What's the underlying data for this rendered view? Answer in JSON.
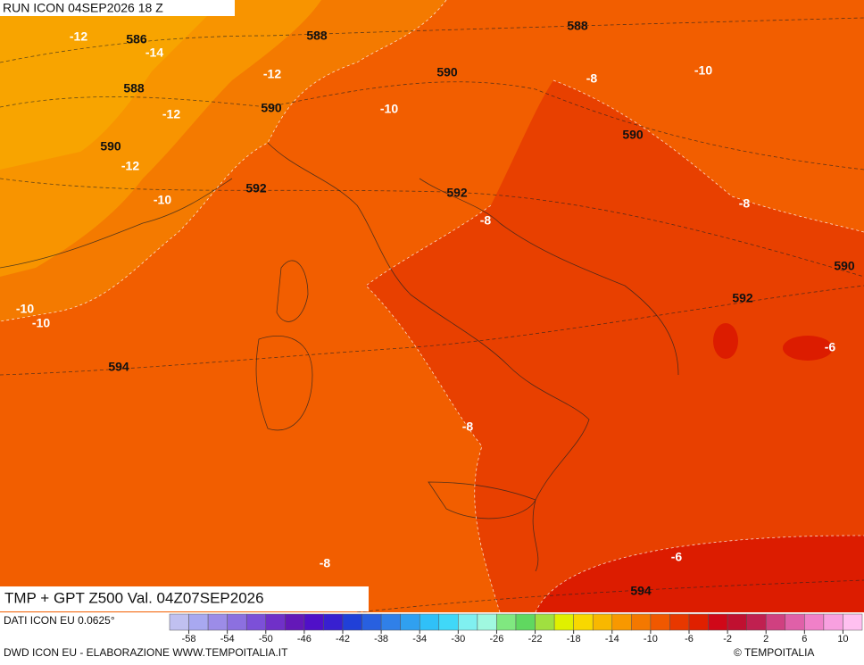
{
  "header": {
    "title": "RUN ICON 04SEP2026 18 Z"
  },
  "map": {
    "caption": "TMP + GPT Z500 Val. 04Z07SEP2026",
    "labels": [
      -12,
      586,
      -14,
      588,
      588,
      -10,
      -12,
      590,
      -8,
      588,
      -12,
      590,
      -10,
      590,
      590,
      -12,
      592,
      -10,
      592,
      -8,
      -8,
      590,
      592,
      -10,
      -10,
      -6,
      594,
      -8,
      -6,
      -8,
      594
    ]
  },
  "colorbar": {
    "ticks": [
      -58,
      -54,
      -50,
      -46,
      -42,
      -38,
      -34,
      -30,
      -26,
      -22,
      -18,
      -14,
      -10,
      -6,
      -2,
      2,
      6,
      10
    ]
  },
  "footer": {
    "source": "DATI ICON EU 0.0625°",
    "credit": "DWD ICON EU - ELABORAZIONE WWW.TEMPOITALIA.IT",
    "copyright": "© TEMPOITALIA"
  }
}
